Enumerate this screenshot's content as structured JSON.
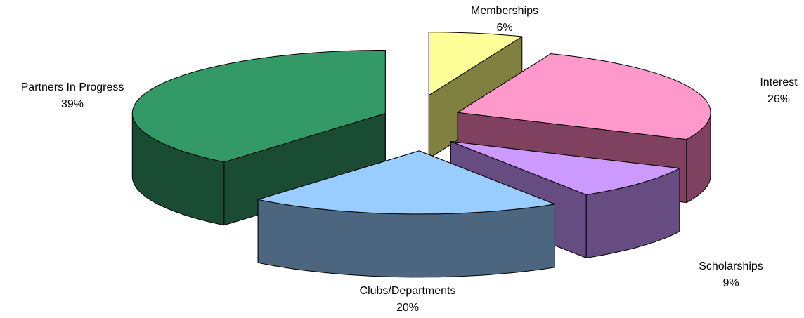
{
  "chart_data": {
    "type": "pie3d",
    "categories": [
      "Memberships",
      "Interest",
      "Scholarships",
      "Clubs/Departments",
      "Partners In Progress"
    ],
    "values": [
      6,
      26,
      9,
      20,
      39
    ],
    "value_labels": [
      "6%",
      "26%",
      "9%",
      "20%",
      "39%"
    ],
    "colors": [
      "#ffff99",
      "#ff99cc",
      "#cc99ff",
      "#99ccff",
      "#339966"
    ],
    "side_colors": [
      "#808040",
      "#804060",
      "#664c80",
      "#4c6680",
      "#194c33"
    ]
  }
}
